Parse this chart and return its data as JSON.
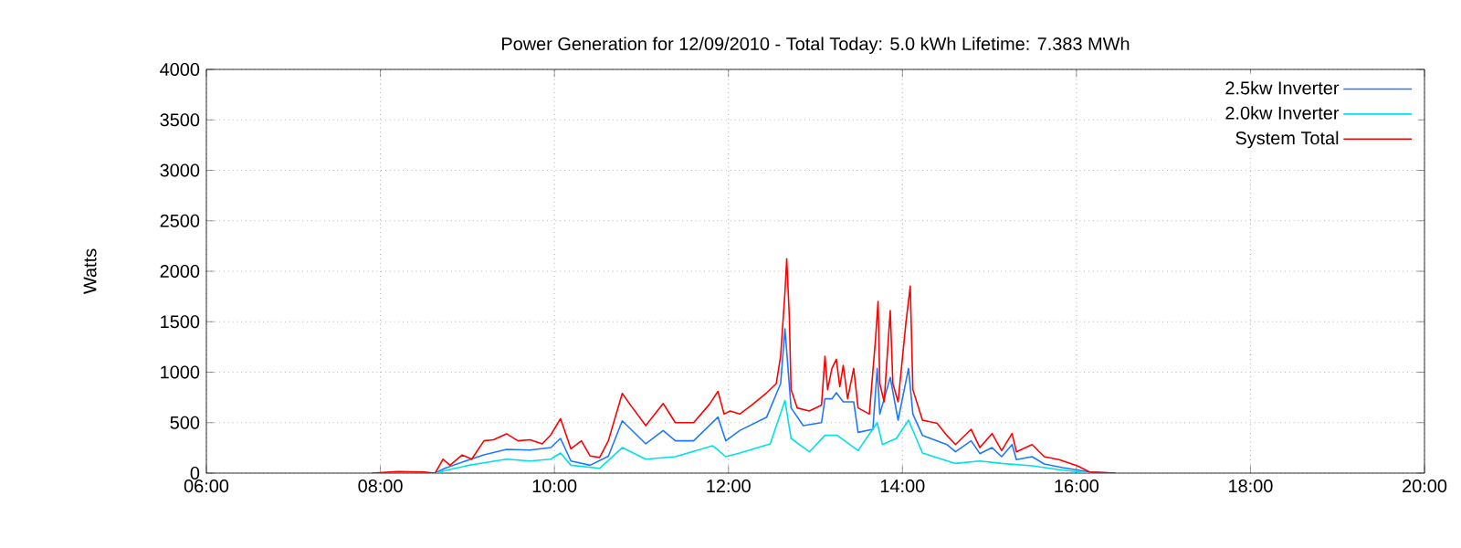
{
  "chart_data": {
    "type": "line",
    "title": "Power Generation for 12/09/2010 - Total Today: 5.0 kWh   Lifetime: 7.383 MWh",
    "ylabel": "Watts",
    "xlim": [
      6,
      20
    ],
    "ylim": [
      0,
      4000
    ],
    "xticks": [
      {
        "value": 6,
        "label": "06:00"
      },
      {
        "value": 8,
        "label": "08:00"
      },
      {
        "value": 10,
        "label": "10:00"
      },
      {
        "value": 12,
        "label": "12:00"
      },
      {
        "value": 14,
        "label": "14:00"
      },
      {
        "value": 16,
        "label": "16:00"
      },
      {
        "value": 18,
        "label": "18:00"
      },
      {
        "value": 20,
        "label": "20:00"
      }
    ],
    "yticks": [
      0,
      500,
      1000,
      1500,
      2000,
      2500,
      3000,
      3500,
      4000
    ],
    "grid": true,
    "legend": "top right",
    "marker": "none",
    "line_style": "solid",
    "series": [
      {
        "name": "2.5kw Inverter",
        "color": "#1e78ff",
        "x": [
          8.63,
          8.74,
          8.94,
          9.19,
          9.45,
          9.72,
          9.96,
          10.07,
          10.19,
          10.41,
          10.62,
          10.78,
          11.05,
          11.25,
          11.39,
          11.6,
          11.88,
          11.97,
          12.13,
          12.44,
          12.6,
          12.65,
          12.72,
          12.86,
          13.07,
          13.11,
          13.19,
          13.24,
          13.32,
          13.44,
          13.49,
          13.66,
          13.71,
          13.74,
          13.86,
          13.95,
          14.07,
          14.12,
          14.23,
          14.51,
          14.61,
          14.79,
          14.89,
          15.03,
          15.14,
          15.26,
          15.31,
          15.49,
          15.63,
          15.84,
          16.15,
          16.45
        ],
        "values": [
          0,
          47,
          109,
          181,
          235,
          228,
          253,
          344,
          120,
          78,
          168,
          518,
          290,
          422,
          320,
          320,
          555,
          320,
          422,
          555,
          887,
          1430,
          646,
          470,
          500,
          736,
          736,
          796,
          706,
          706,
          404,
          434,
          1037,
          585,
          948,
          525,
          1037,
          585,
          374,
          283,
          211,
          320,
          193,
          253,
          163,
          283,
          133,
          163,
          90,
          54,
          12,
          0
        ]
      },
      {
        "name": "2.0kw Inverter",
        "color": "#00e0e8",
        "x": [
          8.63,
          8.8,
          9.02,
          9.45,
          9.72,
          9.96,
          10.07,
          10.19,
          10.52,
          10.78,
          11.05,
          11.39,
          11.82,
          11.97,
          12.13,
          12.48,
          12.65,
          12.72,
          12.93,
          13.11,
          13.25,
          13.49,
          13.71,
          13.77,
          13.93,
          14.07,
          14.23,
          14.61,
          14.89,
          15.14,
          15.49,
          15.84,
          16.15
        ],
        "values": [
          0,
          36,
          78,
          138,
          120,
          138,
          199,
          78,
          47,
          253,
          138,
          163,
          271,
          163,
          199,
          290,
          720,
          344,
          211,
          374,
          374,
          223,
          500,
          283,
          344,
          525,
          199,
          96,
          120,
          96,
          72,
          30,
          0
        ]
      },
      {
        "name": "System Total",
        "color": "#ff0000",
        "x": [
          7.9,
          8.2,
          8.5,
          8.63,
          8.72,
          8.8,
          8.94,
          9.05,
          9.19,
          9.3,
          9.45,
          9.58,
          9.72,
          9.86,
          9.96,
          10.07,
          10.19,
          10.31,
          10.41,
          10.52,
          10.62,
          10.78,
          10.87,
          11.05,
          11.25,
          11.39,
          11.6,
          11.78,
          11.88,
          11.95,
          12.02,
          12.13,
          12.27,
          12.44,
          12.55,
          12.6,
          12.65,
          12.67,
          12.7,
          12.72,
          12.79,
          12.93,
          13.07,
          13.11,
          13.14,
          13.19,
          13.24,
          13.28,
          13.32,
          13.37,
          13.44,
          13.49,
          13.62,
          13.69,
          13.72,
          13.74,
          13.79,
          13.86,
          13.89,
          13.95,
          14.04,
          14.09,
          14.12,
          14.23,
          14.4,
          14.51,
          14.61,
          14.79,
          14.89,
          15.03,
          15.14,
          15.26,
          15.31,
          15.49,
          15.63,
          15.8,
          16.01,
          16.15,
          16.45
        ],
        "values": [
          0,
          15,
          10,
          0,
          138,
          78,
          180,
          138,
          320,
          330,
          390,
          320,
          330,
          290,
          380,
          540,
          240,
          320,
          170,
          155,
          320,
          790,
          680,
          470,
          690,
          500,
          500,
          680,
          810,
          585,
          615,
          585,
          675,
          796,
          887,
          1158,
          1792,
          2123,
          1550,
          827,
          646,
          615,
          675,
          1158,
          827,
          1037,
          1128,
          856,
          1068,
          736,
          1037,
          646,
          585,
          1320,
          1700,
          887,
          706,
          1610,
          887,
          706,
          1490,
          1852,
          827,
          525,
          494,
          374,
          283,
          434,
          253,
          392,
          223,
          392,
          211,
          283,
          163,
          133,
          72,
          12,
          0
        ]
      }
    ]
  }
}
